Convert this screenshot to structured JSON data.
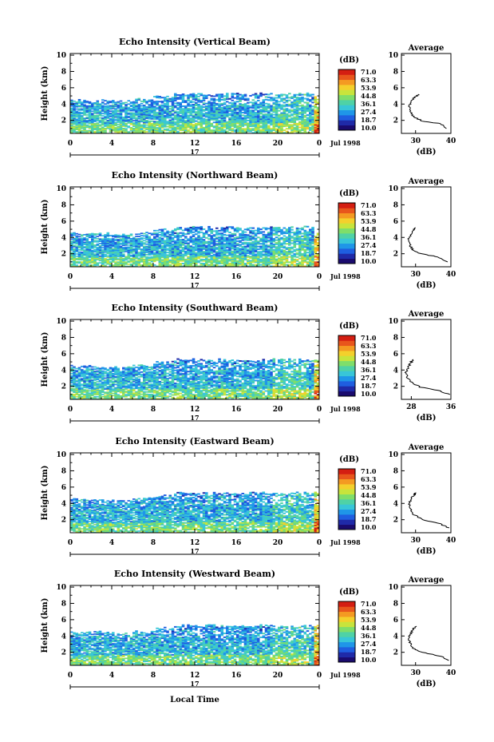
{
  "figure": {
    "x_axis_label": "Local Time",
    "date_label": "Jul 1998",
    "day_label": "17",
    "average_title": "Average",
    "colorbar_unit": "(dB)",
    "avg_unit": "(dB)"
  },
  "colorbar": {
    "ticks": [
      "71.0",
      "63.3",
      "53.9",
      "44.8",
      "36.1",
      "27.4",
      "18.7",
      "10.0"
    ],
    "colors": [
      "#1a0b6e",
      "#1f2aa8",
      "#1f5ee0",
      "#1f96e8",
      "#38c6d8",
      "#4fd2a6",
      "#7fde6a",
      "#c8e43c",
      "#f4d02c",
      "#f49a22",
      "#e8561c",
      "#d41e12"
    ]
  },
  "chart_data": [
    {
      "type": "heatmap",
      "title": "Echo Intensity (Vertical Beam)",
      "ylabel": "Height (km)",
      "x_ticks": [
        "0",
        "4",
        "8",
        "12",
        "16",
        "20",
        "0"
      ],
      "y_ticks": [
        "2",
        "4",
        "6",
        "8",
        "10"
      ],
      "xlim": [
        0,
        24
      ],
      "ylim": [
        0.4,
        10.2
      ],
      "value_range_db": [
        10.0,
        71.0
      ],
      "echo_top_km": [
        4.5,
        4.5,
        4.4,
        4.6,
        5.0,
        5.3,
        5.3,
        5.3,
        5.3,
        5.3,
        5.3,
        5.3
      ],
      "average": {
        "xlim": [
          26,
          40
        ],
        "x_ticks": [
          "30",
          "40"
        ],
        "y_ticks": [
          "2",
          "4",
          "6",
          "8",
          "10"
        ],
        "profile": [
          [
            38.8,
            1.0
          ],
          [
            37.0,
            1.6
          ],
          [
            32.0,
            1.9
          ],
          [
            29.5,
            2.4
          ],
          [
            28.6,
            3.0
          ],
          [
            28.2,
            3.6
          ],
          [
            28.8,
            4.2
          ],
          [
            29.6,
            4.8
          ],
          [
            30.8,
            5.2
          ]
        ]
      }
    },
    {
      "type": "heatmap",
      "title": "Echo Intensity (Northward Beam)",
      "ylabel": "Height (km)",
      "x_ticks": [
        "0",
        "4",
        "8",
        "12",
        "16",
        "20",
        "0"
      ],
      "y_ticks": [
        "2",
        "4",
        "6",
        "8",
        "10"
      ],
      "xlim": [
        0,
        24
      ],
      "ylim": [
        0.4,
        10.2
      ],
      "value_range_db": [
        10.0,
        71.0
      ],
      "echo_top_km": [
        4.5,
        4.5,
        4.4,
        4.6,
        5.0,
        5.3,
        5.3,
        5.3,
        5.3,
        5.3,
        5.3,
        5.3
      ],
      "average": {
        "xlim": [
          26,
          40
        ],
        "x_ticks": [
          "30",
          "40"
        ],
        "y_ticks": [
          "2",
          "4",
          "6",
          "8",
          "10"
        ],
        "profile": [
          [
            39.0,
            1.0
          ],
          [
            36.5,
            1.6
          ],
          [
            31.5,
            2.0
          ],
          [
            29.2,
            2.5
          ],
          [
            28.4,
            3.1
          ],
          [
            28.0,
            3.6
          ],
          [
            28.5,
            4.3
          ],
          [
            29.3,
            4.9
          ],
          [
            30.0,
            5.2
          ]
        ]
      }
    },
    {
      "type": "heatmap",
      "title": "Echo Intensity (Southward Beam)",
      "ylabel": "Height (km)",
      "x_ticks": [
        "0",
        "4",
        "8",
        "12",
        "16",
        "20",
        "0"
      ],
      "y_ticks": [
        "2",
        "4",
        "6",
        "8",
        "10"
      ],
      "xlim": [
        0,
        24
      ],
      "ylim": [
        0.4,
        10.2
      ],
      "value_range_db": [
        10.0,
        71.0
      ],
      "echo_top_km": [
        4.5,
        4.5,
        4.4,
        4.6,
        5.0,
        5.3,
        5.3,
        5.3,
        5.3,
        5.3,
        5.3,
        5.3
      ],
      "average": {
        "xlim": [
          26,
          36
        ],
        "x_ticks": [
          "28",
          "36"
        ],
        "y_ticks": [
          "2",
          "4",
          "6",
          "8",
          "10"
        ],
        "profile": [
          [
            35.6,
            1.0
          ],
          [
            33.5,
            1.5
          ],
          [
            29.8,
            1.9
          ],
          [
            28.0,
            2.5
          ],
          [
            27.2,
            3.1
          ],
          [
            26.9,
            3.7
          ],
          [
            27.3,
            4.3
          ],
          [
            27.9,
            4.9
          ],
          [
            28.4,
            5.3
          ]
        ]
      }
    },
    {
      "type": "heatmap",
      "title": "Echo Intensity (Eastward Beam)",
      "ylabel": "Height (km)",
      "x_ticks": [
        "0",
        "4",
        "8",
        "12",
        "16",
        "20",
        "0"
      ],
      "y_ticks": [
        "2",
        "4",
        "6",
        "8",
        "10"
      ],
      "xlim": [
        0,
        24
      ],
      "ylim": [
        0.4,
        10.2
      ],
      "value_range_db": [
        10.0,
        71.0
      ],
      "echo_top_km": [
        4.5,
        4.5,
        4.4,
        4.6,
        5.0,
        5.3,
        5.3,
        5.3,
        5.3,
        5.3,
        5.3,
        5.3
      ],
      "average": {
        "xlim": [
          26,
          40
        ],
        "x_ticks": [
          "30",
          "40"
        ],
        "y_ticks": [
          "2",
          "4",
          "6",
          "8",
          "10"
        ],
        "profile": [
          [
            39.2,
            1.0
          ],
          [
            37.0,
            1.5
          ],
          [
            32.0,
            2.0
          ],
          [
            29.6,
            2.6
          ],
          [
            28.6,
            3.2
          ],
          [
            28.2,
            3.8
          ],
          [
            28.6,
            4.4
          ],
          [
            29.5,
            5.0
          ],
          [
            30.2,
            5.3
          ]
        ]
      }
    },
    {
      "type": "heatmap",
      "title": "Echo Intensity (Westward Beam)",
      "ylabel": "Height (km)",
      "x_ticks": [
        "0",
        "4",
        "8",
        "12",
        "16",
        "20",
        "0"
      ],
      "y_ticks": [
        "2",
        "4",
        "6",
        "8",
        "10"
      ],
      "xlim": [
        0,
        24
      ],
      "ylim": [
        0.4,
        10.2
      ],
      "value_range_db": [
        10.0,
        71.0
      ],
      "echo_top_km": [
        4.5,
        4.5,
        4.4,
        4.6,
        5.0,
        5.3,
        5.3,
        5.3,
        5.3,
        5.3,
        5.3,
        5.3
      ],
      "average": {
        "xlim": [
          26,
          40
        ],
        "x_ticks": [
          "30",
          "40"
        ],
        "y_ticks": [
          "2",
          "4",
          "6",
          "8",
          "10"
        ],
        "profile": [
          [
            39.5,
            1.0
          ],
          [
            37.2,
            1.5
          ],
          [
            32.0,
            2.0
          ],
          [
            29.3,
            2.5
          ],
          [
            28.4,
            3.1
          ],
          [
            28.0,
            3.7
          ],
          [
            28.6,
            4.3
          ],
          [
            29.4,
            4.9
          ],
          [
            30.3,
            5.2
          ]
        ]
      }
    }
  ]
}
